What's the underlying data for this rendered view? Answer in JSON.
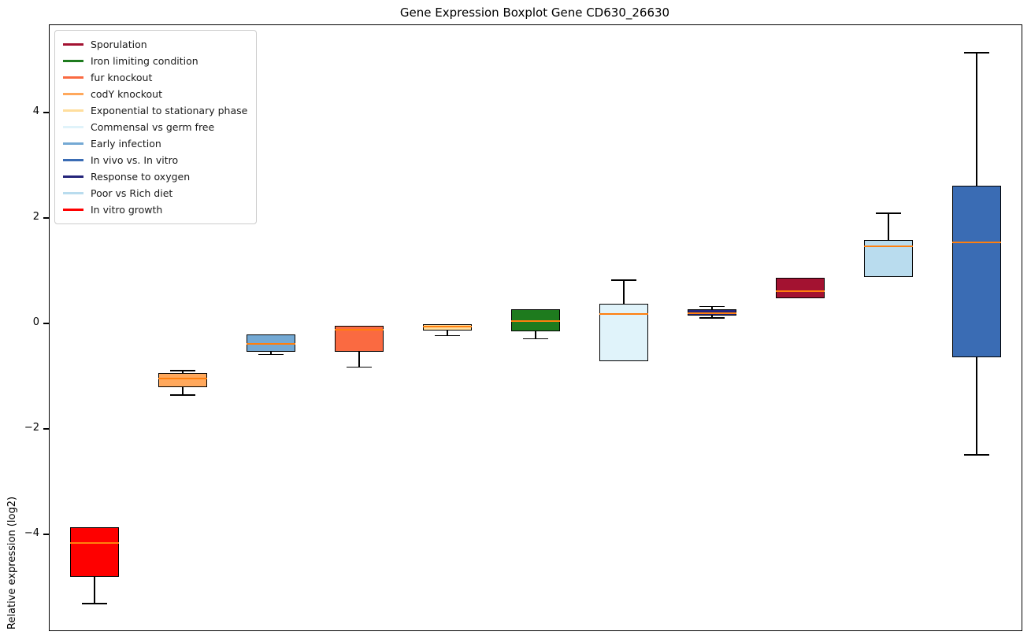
{
  "title": "Gene Expression Boxplot Gene CD630_26630",
  "y_axis": {
    "label": "Relative expression (log2)",
    "ticks": [
      4,
      2,
      0,
      -2,
      -4
    ],
    "tick_labels": [
      "4",
      "2",
      "0",
      "−2",
      "−4"
    ]
  },
  "legend": {
    "items": [
      {
        "label": "Sporulation",
        "color": "#a31231"
      },
      {
        "label": "Iron limiting condition",
        "color": "#1e7b1e"
      },
      {
        "label": "fur knockout",
        "color": "#fa6a41"
      },
      {
        "label": "codY knockout",
        "color": "#ffa85c"
      },
      {
        "label": "Exponential to stationary phase",
        "color": "#ffde9d"
      },
      {
        "label": "Commensal vs germ free",
        "color": "#e0f3fa"
      },
      {
        "label": "Early infection",
        "color": "#74a9d4"
      },
      {
        "label": "In vivo vs. In vitro",
        "color": "#3a6cb4"
      },
      {
        "label": "Response to oxygen",
        "color": "#24247a"
      },
      {
        "label": "Poor vs Rich diet",
        "color": "#b9dcee"
      },
      {
        "label": "In vitro growth",
        "color": "#fe0000"
      }
    ]
  },
  "chart_data": {
    "type": "boxplot",
    "title": "Gene Expression Boxplot Gene CD630_26630",
    "xlabel": "",
    "ylabel": "Relative expression (log2)",
    "ylim": [
      -5.81,
      5.67
    ],
    "yticks": [
      -4,
      -2,
      0,
      2,
      4
    ],
    "grid": false,
    "legend_position": "upper left",
    "median_color": "#ff7f0e",
    "whisker_color": "#000000",
    "boxes": [
      {
        "label": "In vitro growth",
        "color": "#fe0000",
        "whislo": -5.3,
        "q1": -4.8,
        "med": -4.15,
        "q3": -3.85,
        "whishi": -3.85
      },
      {
        "label": "codY knockout",
        "color": "#ffa85c",
        "whislo": -1.35,
        "q1": -1.2,
        "med": -1.03,
        "q3": -0.93,
        "whishi": -0.88
      },
      {
        "label": "Early infection",
        "color": "#74a9d4",
        "whislo": -0.58,
        "q1": -0.53,
        "med": -0.38,
        "q3": -0.2,
        "whishi": -0.2
      },
      {
        "label": "fur knockout",
        "color": "#fa6a41",
        "whislo": -0.82,
        "q1": -0.52,
        "med": -0.1,
        "q3": -0.03,
        "whishi": -0.03
      },
      {
        "label": "Exponential to stationary phase",
        "color": "#ffde9d",
        "whislo": -0.22,
        "q1": -0.12,
        "med": -0.05,
        "q3": -0.01,
        "whishi": -0.01
      },
      {
        "label": "Iron limiting condition",
        "color": "#1e7b1e",
        "whislo": -0.28,
        "q1": -0.13,
        "med": 0.05,
        "q3": 0.28,
        "whishi": 0.28
      },
      {
        "label": "Commensal vs germ free",
        "color": "#e0f3fa",
        "whislo": -0.7,
        "q1": -0.7,
        "med": 0.19,
        "q3": 0.39,
        "whishi": 0.83
      },
      {
        "label": "Response to oxygen",
        "color": "#24247a",
        "whislo": 0.12,
        "q1": 0.16,
        "med": 0.21,
        "q3": 0.28,
        "whishi": 0.33
      },
      {
        "label": "Sporulation",
        "color": "#a31231",
        "whislo": 0.49,
        "q1": 0.49,
        "med": 0.63,
        "q3": 0.88,
        "whishi": 0.88
      },
      {
        "label": "Poor vs Rich diet",
        "color": "#b9dcee",
        "whislo": 0.9,
        "q1": 0.9,
        "med": 1.48,
        "q3": 1.6,
        "whishi": 2.1
      },
      {
        "label": "In vivo vs. In vitro",
        "color": "#3a6cb4",
        "whislo": -2.48,
        "q1": -0.63,
        "med": 1.55,
        "q3": 2.63,
        "whishi": 5.15
      }
    ]
  }
}
